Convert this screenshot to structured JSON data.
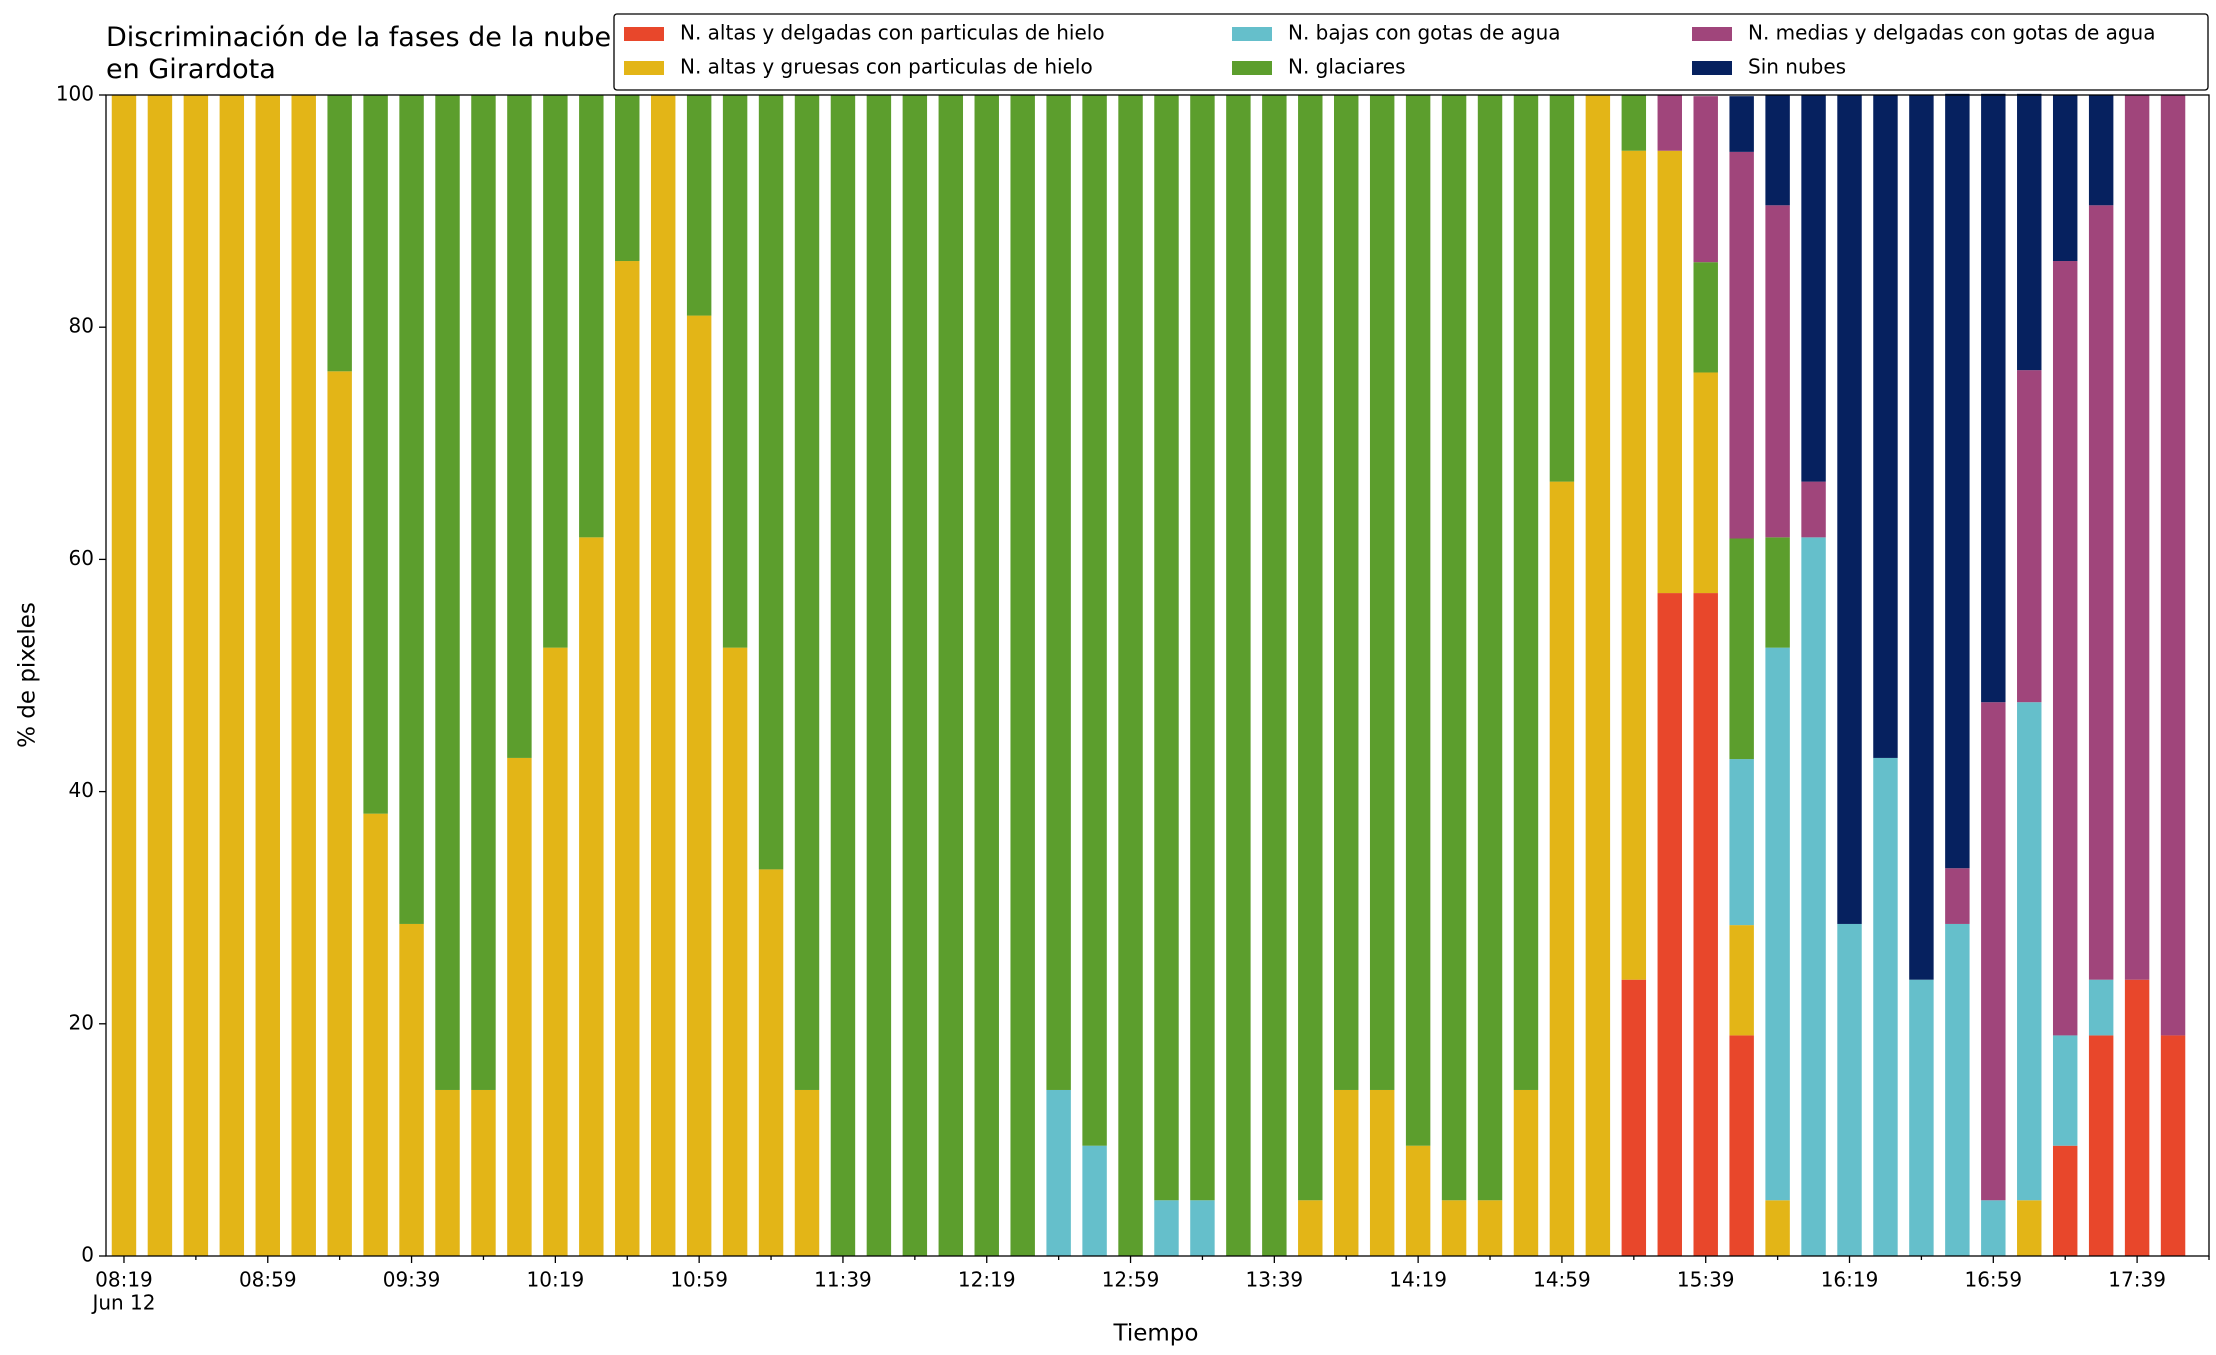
{
  "chart_data": {
    "type": "stacked_bar",
    "title": "Discriminación de la fases de la nube en Girardota",
    "x_label": "Tiempo",
    "y_label": "% de pixeles",
    "date_label": "Jun 12",
    "categories": [
      "08:19",
      null,
      null,
      null,
      "08:59",
      null,
      null,
      null,
      "09:39",
      null,
      null,
      null,
      "10:19",
      null,
      null,
      null,
      "10:59",
      null,
      null,
      null,
      "11:39",
      null,
      null,
      null,
      "12:19",
      null,
      null,
      null,
      "12:59",
      null,
      null,
      null,
      "13:39",
      null,
      null,
      null,
      "14:19",
      null,
      null,
      null,
      "14:59",
      null,
      null,
      null,
      "15:39",
      null,
      null,
      null,
      "16:19",
      null,
      null,
      null,
      "16:59",
      null,
      null,
      null,
      "17:39",
      null
    ],
    "series": [
      {
        "name": "N. altas y delgadas con particulas de hielo",
        "color": "#e8472b",
        "values": [
          0,
          0,
          0,
          0,
          0,
          0,
          0,
          0,
          0,
          0,
          0,
          0,
          0,
          0,
          0,
          0,
          0,
          0,
          0,
          0,
          0,
          0,
          0,
          0,
          0,
          0,
          0,
          0,
          0,
          0,
          0,
          0,
          0,
          0,
          0,
          0,
          0,
          0,
          0,
          0,
          0,
          0,
          23.8,
          57.1,
          57.1,
          19,
          0,
          0,
          0,
          0,
          0,
          0,
          0,
          0,
          9.5,
          19,
          23.8,
          19
        ]
      },
      {
        "name": "N. altas y gruesas con particulas de hielo",
        "color": "#e3b517",
        "values": [
          100,
          100,
          100,
          100,
          100,
          100,
          76.2,
          38.1,
          28.6,
          14.3,
          14.3,
          42.9,
          52.4,
          61.9,
          85.7,
          100,
          81,
          52.4,
          33.3,
          14.3,
          0,
          0,
          0,
          0,
          0,
          0,
          0,
          0,
          0,
          0,
          0,
          0,
          0,
          4.8,
          14.3,
          14.3,
          9.5,
          4.8,
          4.8,
          14.3,
          66.7,
          100,
          71.4,
          38.1,
          19,
          9.5,
          4.8,
          0,
          0,
          0,
          0,
          0,
          0,
          4.8,
          0,
          0,
          0,
          0
        ]
      },
      {
        "name": "N. bajas con gotas de agua",
        "color": "#65bfcb",
        "values": [
          0,
          0,
          0,
          0,
          0,
          0,
          0,
          0,
          0,
          0,
          0,
          0,
          0,
          0,
          0,
          0,
          0,
          0,
          0,
          0,
          0,
          0,
          0,
          0,
          0,
          0,
          14.3,
          9.5,
          0,
          4.8,
          4.8,
          0,
          0,
          0,
          0,
          0,
          0,
          0,
          0,
          0,
          0,
          0,
          0,
          0,
          0,
          14.3,
          47.6,
          61.9,
          28.6,
          42.9,
          23.8,
          28.6,
          4.8,
          42.9,
          9.5,
          4.8,
          0,
          0
        ]
      },
      {
        "name": "N. glaciares",
        "color": "#5c9e2d",
        "values": [
          0,
          0,
          0,
          0,
          0,
          0,
          23.8,
          61.9,
          71.4,
          85.7,
          85.7,
          57.1,
          47.6,
          38.1,
          14.3,
          0,
          19,
          47.6,
          66.7,
          85.7,
          100,
          100,
          100,
          100,
          100,
          100,
          85.7,
          90.5,
          100,
          95.2,
          95.2,
          100,
          100,
          95.2,
          85.7,
          85.7,
          90.5,
          95.2,
          95.2,
          85.7,
          33.3,
          0,
          4.8,
          0,
          9.5,
          19,
          9.5,
          0,
          0,
          0,
          0,
          0,
          0,
          0,
          0,
          0,
          0,
          0
        ]
      },
      {
        "name": "N. medias y delgadas con gotas de agua",
        "color": "#a0457b",
        "values": [
          0,
          0,
          0,
          0,
          0,
          0,
          0,
          0,
          0,
          0,
          0,
          0,
          0,
          0,
          0,
          0,
          0,
          0,
          0,
          0,
          0,
          0,
          0,
          0,
          0,
          0,
          0,
          0,
          0,
          0,
          0,
          0,
          0,
          0,
          0,
          0,
          0,
          0,
          0,
          0,
          0,
          0,
          0,
          4.8,
          14.3,
          33.3,
          28.6,
          4.8,
          0,
          0,
          0,
          4.8,
          42.9,
          28.6,
          66.7,
          66.7,
          76.2,
          81
        ]
      },
      {
        "name": "Sin nubes",
        "color": "#06215f",
        "values": [
          0,
          0,
          0,
          0,
          0,
          0,
          0,
          0,
          0,
          0,
          0,
          0,
          0,
          0,
          0,
          0,
          0,
          0,
          0,
          0,
          0,
          0,
          0,
          0,
          0,
          0,
          0,
          0,
          0,
          0,
          0,
          0,
          0,
          0,
          0,
          0,
          0,
          0,
          0,
          0,
          0,
          0,
          0,
          0,
          0,
          4.8,
          9.5,
          33.3,
          71.4,
          57.1,
          76.2,
          66.7,
          52.4,
          23.8,
          14.3,
          9.5,
          0,
          0
        ]
      }
    ],
    "ylim": [
      0,
      100
    ],
    "yticks": [
      0,
      20,
      40,
      60,
      80,
      100
    ],
    "legend": "top"
  }
}
